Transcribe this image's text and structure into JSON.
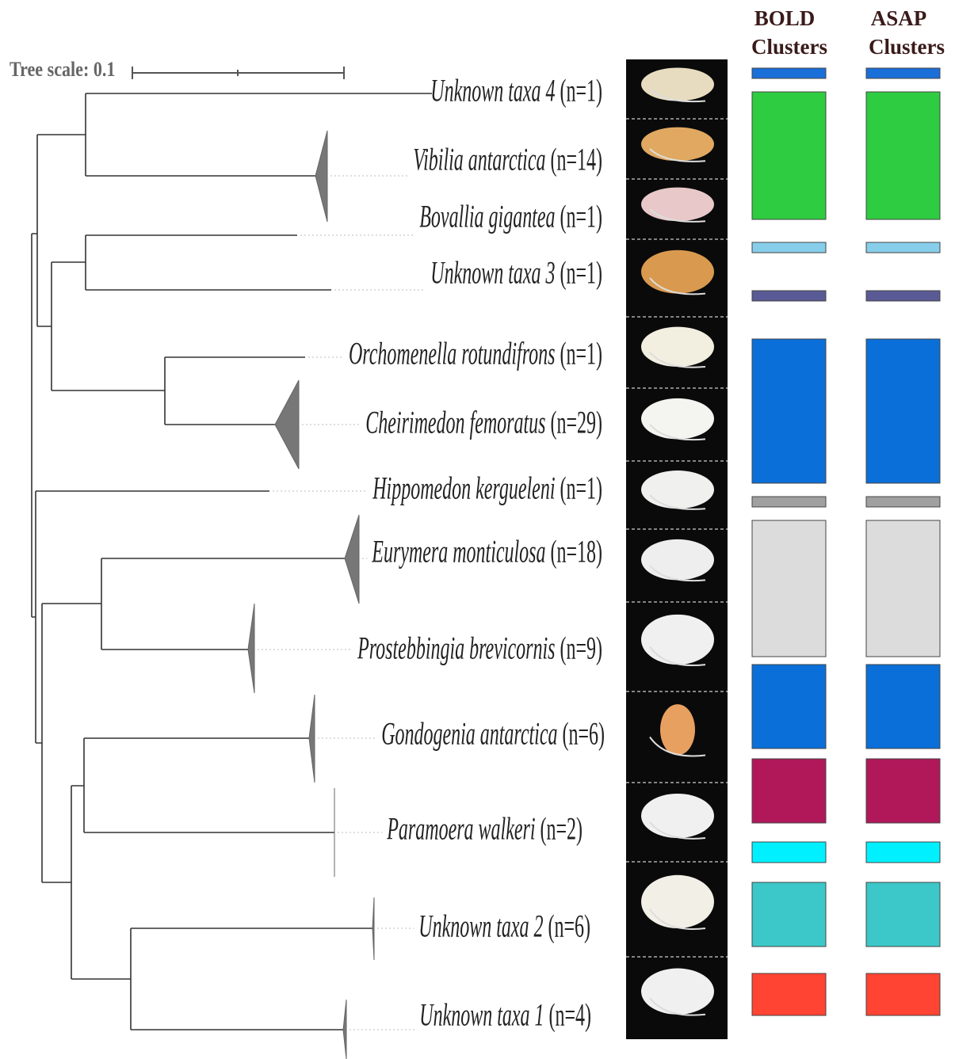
{
  "tree_scale": "Tree scale: 0.1",
  "columns": [
    [
      "BOLD",
      "Clusters"
    ],
    [
      "ASAP",
      "Clusters"
    ]
  ],
  "taxa": [
    {
      "name": "Unknown taxa 4",
      "count": "(n=1)"
    },
    {
      "name": "Vibilia antarctica",
      "count": "(n=14)"
    },
    {
      "name": "Bovallia gigantea",
      "count": "(n=1)"
    },
    {
      "name": "Unknown taxa 3",
      "count": "(n=1)"
    },
    {
      "name": "Orchomenella rotundifrons",
      "count": "(n=1)"
    },
    {
      "name": "Cheirimedon femoratus",
      "count": "(n=29)"
    },
    {
      "name": "Hippomedon kergueleni",
      "count": "(n=1)"
    },
    {
      "name": "Eurymera monticulosa",
      "count": "(n=18)"
    },
    {
      "name": "Prostebbingia brevicornis",
      "count": "(n=9)"
    },
    {
      "name": "Gondogenia antarctica",
      "count": "(n=6)"
    },
    {
      "name": "Paramoera walkeri",
      "count": "(n=2)"
    },
    {
      "name": "Unknown taxa 2",
      "count": "(n=6)"
    },
    {
      "name": "Unknown taxa 1",
      "count": "(n=4)"
    }
  ]
}
